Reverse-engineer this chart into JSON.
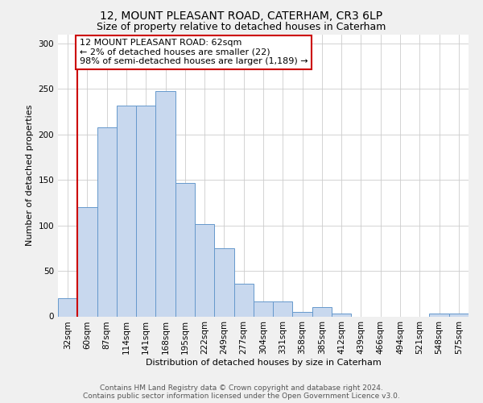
{
  "title": "12, MOUNT PLEASANT ROAD, CATERHAM, CR3 6LP",
  "subtitle": "Size of property relative to detached houses in Caterham",
  "xlabel": "Distribution of detached houses by size in Caterham",
  "ylabel": "Number of detached properties",
  "bar_labels": [
    "32sqm",
    "60sqm",
    "87sqm",
    "114sqm",
    "141sqm",
    "168sqm",
    "195sqm",
    "222sqm",
    "249sqm",
    "277sqm",
    "304sqm",
    "331sqm",
    "358sqm",
    "385sqm",
    "412sqm",
    "439sqm",
    "466sqm",
    "494sqm",
    "521sqm",
    "548sqm",
    "575sqm"
  ],
  "bar_values": [
    20,
    120,
    208,
    232,
    232,
    248,
    147,
    101,
    75,
    36,
    16,
    16,
    5,
    10,
    3,
    0,
    0,
    0,
    0,
    3,
    3
  ],
  "bar_color": "#c8d8ee",
  "bar_edge_color": "#6699cc",
  "vline_color": "#cc0000",
  "annotation_text": "12 MOUNT PLEASANT ROAD: 62sqm\n← 2% of detached houses are smaller (22)\n98% of semi-detached houses are larger (1,189) →",
  "annotation_box_color": "#ffffff",
  "annotation_box_edge": "#cc0000",
  "ylim": [
    0,
    310
  ],
  "yticks": [
    0,
    50,
    100,
    150,
    200,
    250,
    300
  ],
  "footer_line1": "Contains HM Land Registry data © Crown copyright and database right 2024.",
  "footer_line2": "Contains public sector information licensed under the Open Government Licence v3.0.",
  "title_fontsize": 10,
  "subtitle_fontsize": 9,
  "axis_label_fontsize": 8,
  "tick_fontsize": 7.5,
  "annotation_fontsize": 8,
  "footer_fontsize": 6.5,
  "fig_bg_color": "#f0f0f0"
}
